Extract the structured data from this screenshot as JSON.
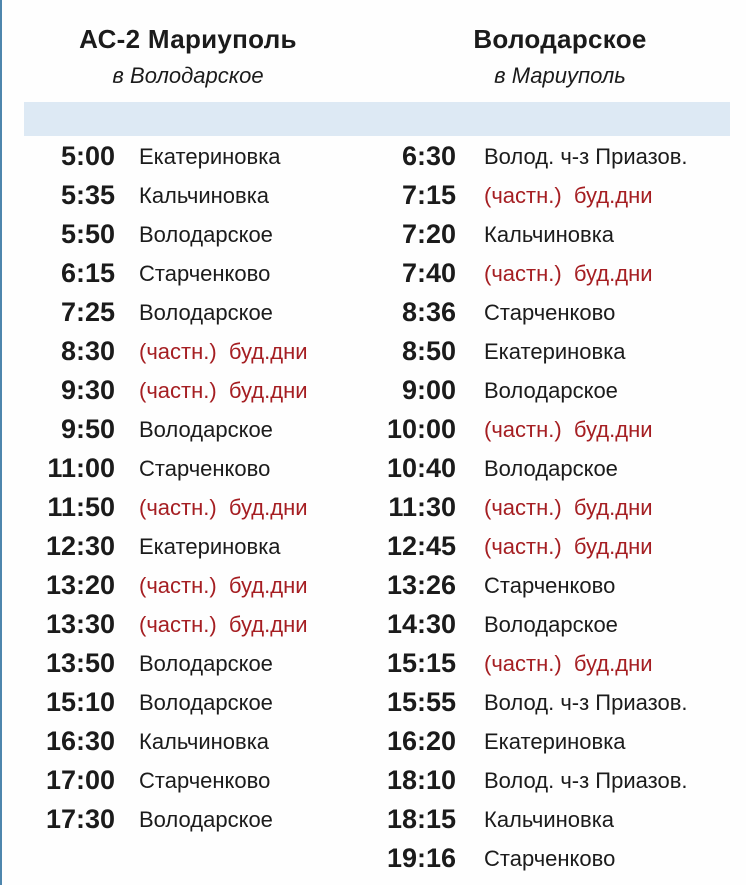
{
  "colors": {
    "private_note_red": "#a51e22",
    "band_blue": "#dde9f4",
    "border_blue": "#4e86ad",
    "ink": "#1b1b1b",
    "page_bg": "#fefefe"
  },
  "left_column": {
    "title": "АС-2 Мариуполь",
    "subtitle": "в Володарское",
    "rows": [
      {
        "time": "5:00",
        "destination": "Екатериновка",
        "type": "normal"
      },
      {
        "time": "5:35",
        "destination": "Кальчиновка",
        "type": "normal"
      },
      {
        "time": "5:50",
        "destination": "Володарское",
        "type": "normal"
      },
      {
        "time": "6:15",
        "destination": "Старченково",
        "type": "normal"
      },
      {
        "time": "7:25",
        "destination": "Володарское",
        "type": "normal"
      },
      {
        "time": "8:30",
        "destination": "(частн.)  буд.дни",
        "type": "private"
      },
      {
        "time": "9:30",
        "destination": "(частн.)  буд.дни",
        "type": "private"
      },
      {
        "time": "9:50",
        "destination": "Володарское",
        "type": "normal"
      },
      {
        "time": "11:00",
        "destination": "Старченково",
        "type": "normal"
      },
      {
        "time": "11:50",
        "destination": "(частн.)  буд.дни",
        "type": "private"
      },
      {
        "time": "12:30",
        "destination": "Екатериновка",
        "type": "normal"
      },
      {
        "time": "13:20",
        "destination": "(частн.)  буд.дни",
        "type": "private"
      },
      {
        "time": "13:30",
        "destination": "(частн.)  буд.дни",
        "type": "private"
      },
      {
        "time": "13:50",
        "destination": "Володарское",
        "type": "normal"
      },
      {
        "time": "15:10",
        "destination": "Володарское",
        "type": "normal"
      },
      {
        "time": "16:30",
        "destination": "Кальчиновка",
        "type": "normal"
      },
      {
        "time": "17:00",
        "destination": "Старченково",
        "type": "normal"
      },
      {
        "time": "17:30",
        "destination": "Володарское",
        "type": "normal"
      }
    ]
  },
  "right_column": {
    "title": "Володарское",
    "subtitle": "в Мариуполь",
    "rows": [
      {
        "time": "6:30",
        "destination": "Волод. ч-з Приазов.",
        "type": "normal"
      },
      {
        "time": "7:15",
        "destination": "(частн.)  буд.дни",
        "type": "private"
      },
      {
        "time": "7:20",
        "destination": "Кальчиновка",
        "type": "normal"
      },
      {
        "time": "7:40",
        "destination": "(частн.)  буд.дни",
        "type": "private"
      },
      {
        "time": "8:36",
        "destination": "Старченково",
        "type": "normal"
      },
      {
        "time": "8:50",
        "destination": "Екатериновка",
        "type": "normal"
      },
      {
        "time": "9:00",
        "destination": "Володарское",
        "type": "normal"
      },
      {
        "time": "10:00",
        "destination": "(частн.)  буд.дни",
        "type": "private"
      },
      {
        "time": "10:40",
        "destination": "Володарское",
        "type": "normal"
      },
      {
        "time": "11:30",
        "destination": "(частн.)  буд.дни",
        "type": "private"
      },
      {
        "time": "12:45",
        "destination": "(частн.)  буд.дни",
        "type": "private"
      },
      {
        "time": "13:26",
        "destination": "Старченково",
        "type": "normal"
      },
      {
        "time": "14:30",
        "destination": "Володарское",
        "type": "normal"
      },
      {
        "time": "15:15",
        "destination": "(частн.)  буд.дни",
        "type": "private"
      },
      {
        "time": "15:55",
        "destination": "Волод. ч-з Приазов.",
        "type": "normal"
      },
      {
        "time": "16:20",
        "destination": "Екатериновка",
        "type": "normal"
      },
      {
        "time": "18:10",
        "destination": "Волод. ч-з Приазов.",
        "type": "normal"
      },
      {
        "time": "18:15",
        "destination": "Кальчиновка",
        "type": "normal"
      },
      {
        "time": "19:16",
        "destination": "Старченково",
        "type": "normal"
      }
    ]
  }
}
